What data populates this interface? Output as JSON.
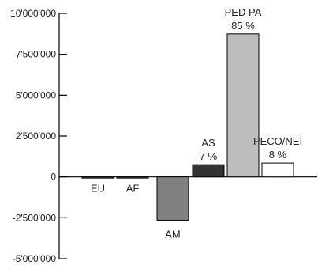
{
  "chart_data": {
    "type": "bar",
    "title": "",
    "xlabel": "",
    "ylabel": "",
    "ylim": [
      -5000000,
      10000000
    ],
    "y_ticks": [
      10000000,
      7500000,
      5000000,
      2500000,
      0,
      -2500000,
      -5000000
    ],
    "y_tick_labels": [
      "10'000'000",
      "7'500'000",
      "5'000'000",
      "2'500'000",
      "0",
      "-2'500'000",
      "-5'000'000"
    ],
    "grid": false,
    "categories": [
      "EU",
      "AF",
      "AM",
      "AS",
      "PED PA",
      "PECO/NEI"
    ],
    "values": [
      -60000,
      -40000,
      -2650000,
      750000,
      8750000,
      850000
    ],
    "bar_labels": [
      {
        "category": "EU",
        "lines": [
          "EU"
        ]
      },
      {
        "category": "AF",
        "lines": [
          "AF"
        ]
      },
      {
        "category": "AM",
        "lines": [
          "AM"
        ]
      },
      {
        "category": "AS",
        "lines": [
          "AS",
          "7 %"
        ]
      },
      {
        "category": "PED PA",
        "lines": [
          "PED PA",
          "85 %"
        ]
      },
      {
        "category": "PECO/NEI",
        "lines": [
          "PECO/NEI",
          "8 %"
        ]
      }
    ],
    "colors": {
      "EU": "#555555",
      "AF": "#555555",
      "AM": "#808080",
      "AS": "#333333",
      "PED PA": "#bdbdbd",
      "PECO/NEI": "#ffffff",
      "outline": "#000000"
    }
  }
}
